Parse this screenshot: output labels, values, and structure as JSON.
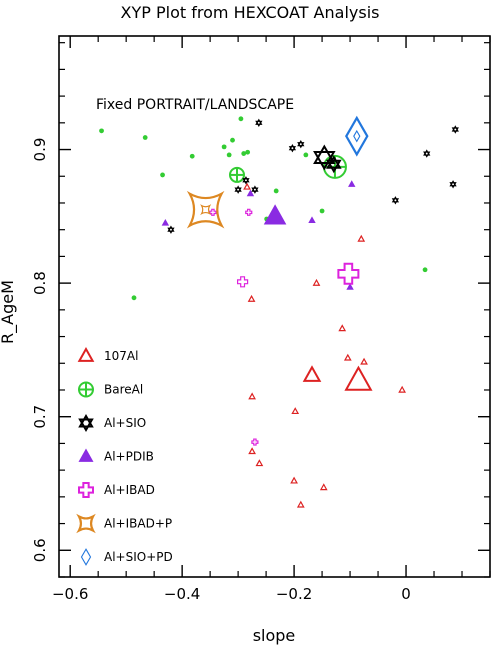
{
  "chart_data": {
    "type": "scatter",
    "title": "XYP Plot from HEXCOAT Analysis",
    "xlabel": "slope",
    "ylabel": "R_AgeM",
    "annotation": "Fixed PORTRAIT/LANDSCAPE",
    "xlim": [
      -0.62,
      0.15
    ],
    "ylim": [
      0.58,
      0.985
    ],
    "xticks": [
      -0.6,
      -0.4,
      -0.2,
      0
    ],
    "xtick_labels": [
      "−0.6",
      "−0.4",
      "−0.2",
      "0"
    ],
    "yticks": [
      0.6,
      0.7,
      0.8,
      0.9
    ],
    "ytick_labels": [
      "0.6",
      "0.7",
      "0.8",
      "0.9"
    ],
    "legend_position": "left",
    "series": [
      {
        "name": "107Al",
        "marker": "triangle-open",
        "color": "#dd2222",
        "points": [
          {
            "x": -0.284,
            "y": 0.872,
            "s": 3
          },
          {
            "x": -0.276,
            "y": 0.788,
            "s": 3
          },
          {
            "x": -0.275,
            "y": 0.715,
            "s": 3
          },
          {
            "x": -0.275,
            "y": 0.674,
            "s": 3
          },
          {
            "x": -0.262,
            "y": 0.665,
            "s": 3
          },
          {
            "x": -0.198,
            "y": 0.704,
            "s": 3
          },
          {
            "x": -0.2,
            "y": 0.652,
            "s": 3
          },
          {
            "x": -0.188,
            "y": 0.634,
            "s": 3
          },
          {
            "x": -0.168,
            "y": 0.731,
            "s": 8
          },
          {
            "x": -0.16,
            "y": 0.8,
            "s": 3
          },
          {
            "x": -0.147,
            "y": 0.647,
            "s": 3
          },
          {
            "x": -0.114,
            "y": 0.766,
            "s": 3
          },
          {
            "x": -0.104,
            "y": 0.744,
            "s": 3
          },
          {
            "x": -0.085,
            "y": 0.727,
            "s": 13
          },
          {
            "x": -0.08,
            "y": 0.833,
            "s": 3
          },
          {
            "x": -0.075,
            "y": 0.741,
            "s": 3
          },
          {
            "x": -0.007,
            "y": 0.72,
            "s": 3
          }
        ]
      },
      {
        "name": "BareAl",
        "marker": "circle-plus",
        "color": "#33cc33",
        "points": [
          {
            "x": -0.544,
            "y": 0.914,
            "s": 3
          },
          {
            "x": -0.486,
            "y": 0.789,
            "s": 3
          },
          {
            "x": -0.466,
            "y": 0.909,
            "s": 3
          },
          {
            "x": -0.435,
            "y": 0.881,
            "s": 3
          },
          {
            "x": -0.382,
            "y": 0.895,
            "s": 3
          },
          {
            "x": -0.325,
            "y": 0.902,
            "s": 3
          },
          {
            "x": -0.316,
            "y": 0.896,
            "s": 3
          },
          {
            "x": -0.31,
            "y": 0.907,
            "s": 3
          },
          {
            "x": -0.295,
            "y": 0.923,
            "s": 3
          },
          {
            "x": -0.29,
            "y": 0.897,
            "s": 3
          },
          {
            "x": -0.302,
            "y": 0.881,
            "s": 7
          },
          {
            "x": -0.283,
            "y": 0.898,
            "s": 3
          },
          {
            "x": -0.249,
            "y": 0.848,
            "s": 3
          },
          {
            "x": -0.232,
            "y": 0.869,
            "s": 3
          },
          {
            "x": -0.179,
            "y": 0.896,
            "s": 3
          },
          {
            "x": -0.15,
            "y": 0.854,
            "s": 3
          },
          {
            "x": -0.127,
            "y": 0.887,
            "s": 11
          },
          {
            "x": 0.034,
            "y": 0.81,
            "s": 3
          }
        ]
      },
      {
        "name": "Al+SIO",
        "marker": "star-of-david",
        "color": "#000000",
        "points": [
          {
            "x": -0.42,
            "y": 0.84,
            "s": 3
          },
          {
            "x": -0.3,
            "y": 0.87,
            "s": 3
          },
          {
            "x": -0.286,
            "y": 0.877,
            "s": 3
          },
          {
            "x": -0.27,
            "y": 0.87,
            "s": 3
          },
          {
            "x": -0.263,
            "y": 0.92,
            "s": 3
          },
          {
            "x": -0.203,
            "y": 0.901,
            "s": 3
          },
          {
            "x": -0.188,
            "y": 0.904,
            "s": 3
          },
          {
            "x": -0.146,
            "y": 0.894,
            "s": 11
          },
          {
            "x": -0.129,
            "y": 0.889,
            "s": 7
          },
          {
            "x": -0.019,
            "y": 0.862,
            "s": 3
          },
          {
            "x": 0.037,
            "y": 0.897,
            "s": 3
          },
          {
            "x": 0.084,
            "y": 0.874,
            "s": 3
          },
          {
            "x": 0.088,
            "y": 0.915,
            "s": 3
          }
        ]
      },
      {
        "name": "Al+PDIB",
        "marker": "triangle-filled",
        "color": "#8a2be2",
        "points": [
          {
            "x": -0.43,
            "y": 0.845,
            "s": 3
          },
          {
            "x": -0.278,
            "y": 0.867,
            "s": 3
          },
          {
            "x": -0.234,
            "y": 0.85,
            "s": 11
          },
          {
            "x": -0.168,
            "y": 0.847,
            "s": 3
          },
          {
            "x": -0.097,
            "y": 0.874,
            "s": 3
          },
          {
            "x": -0.1,
            "y": 0.797,
            "s": 3
          }
        ]
      },
      {
        "name": "Al+IBAD",
        "marker": "cross-open",
        "color": "#dd22dd",
        "points": [
          {
            "x": -0.345,
            "y": 0.853,
            "s": 3
          },
          {
            "x": -0.292,
            "y": 0.801,
            "s": 5
          },
          {
            "x": -0.281,
            "y": 0.853,
            "s": 3
          },
          {
            "x": -0.27,
            "y": 0.681,
            "s": 3
          },
          {
            "x": -0.103,
            "y": 0.807,
            "s": 10
          }
        ]
      },
      {
        "name": "Al+IBAD+P",
        "marker": "astroid",
        "color": "#dd8822",
        "points": [
          {
            "x": -0.358,
            "y": 0.855,
            "s": 16
          },
          {
            "x": -0.358,
            "y": 0.855,
            "s": 4
          }
        ]
      },
      {
        "name": "Al+SIO+PD",
        "marker": "diamond-open",
        "color": "#2277dd",
        "points": [
          {
            "x": -0.088,
            "y": 0.91,
            "s": 14
          },
          {
            "x": -0.088,
            "y": 0.91,
            "s": 4
          }
        ]
      }
    ]
  }
}
